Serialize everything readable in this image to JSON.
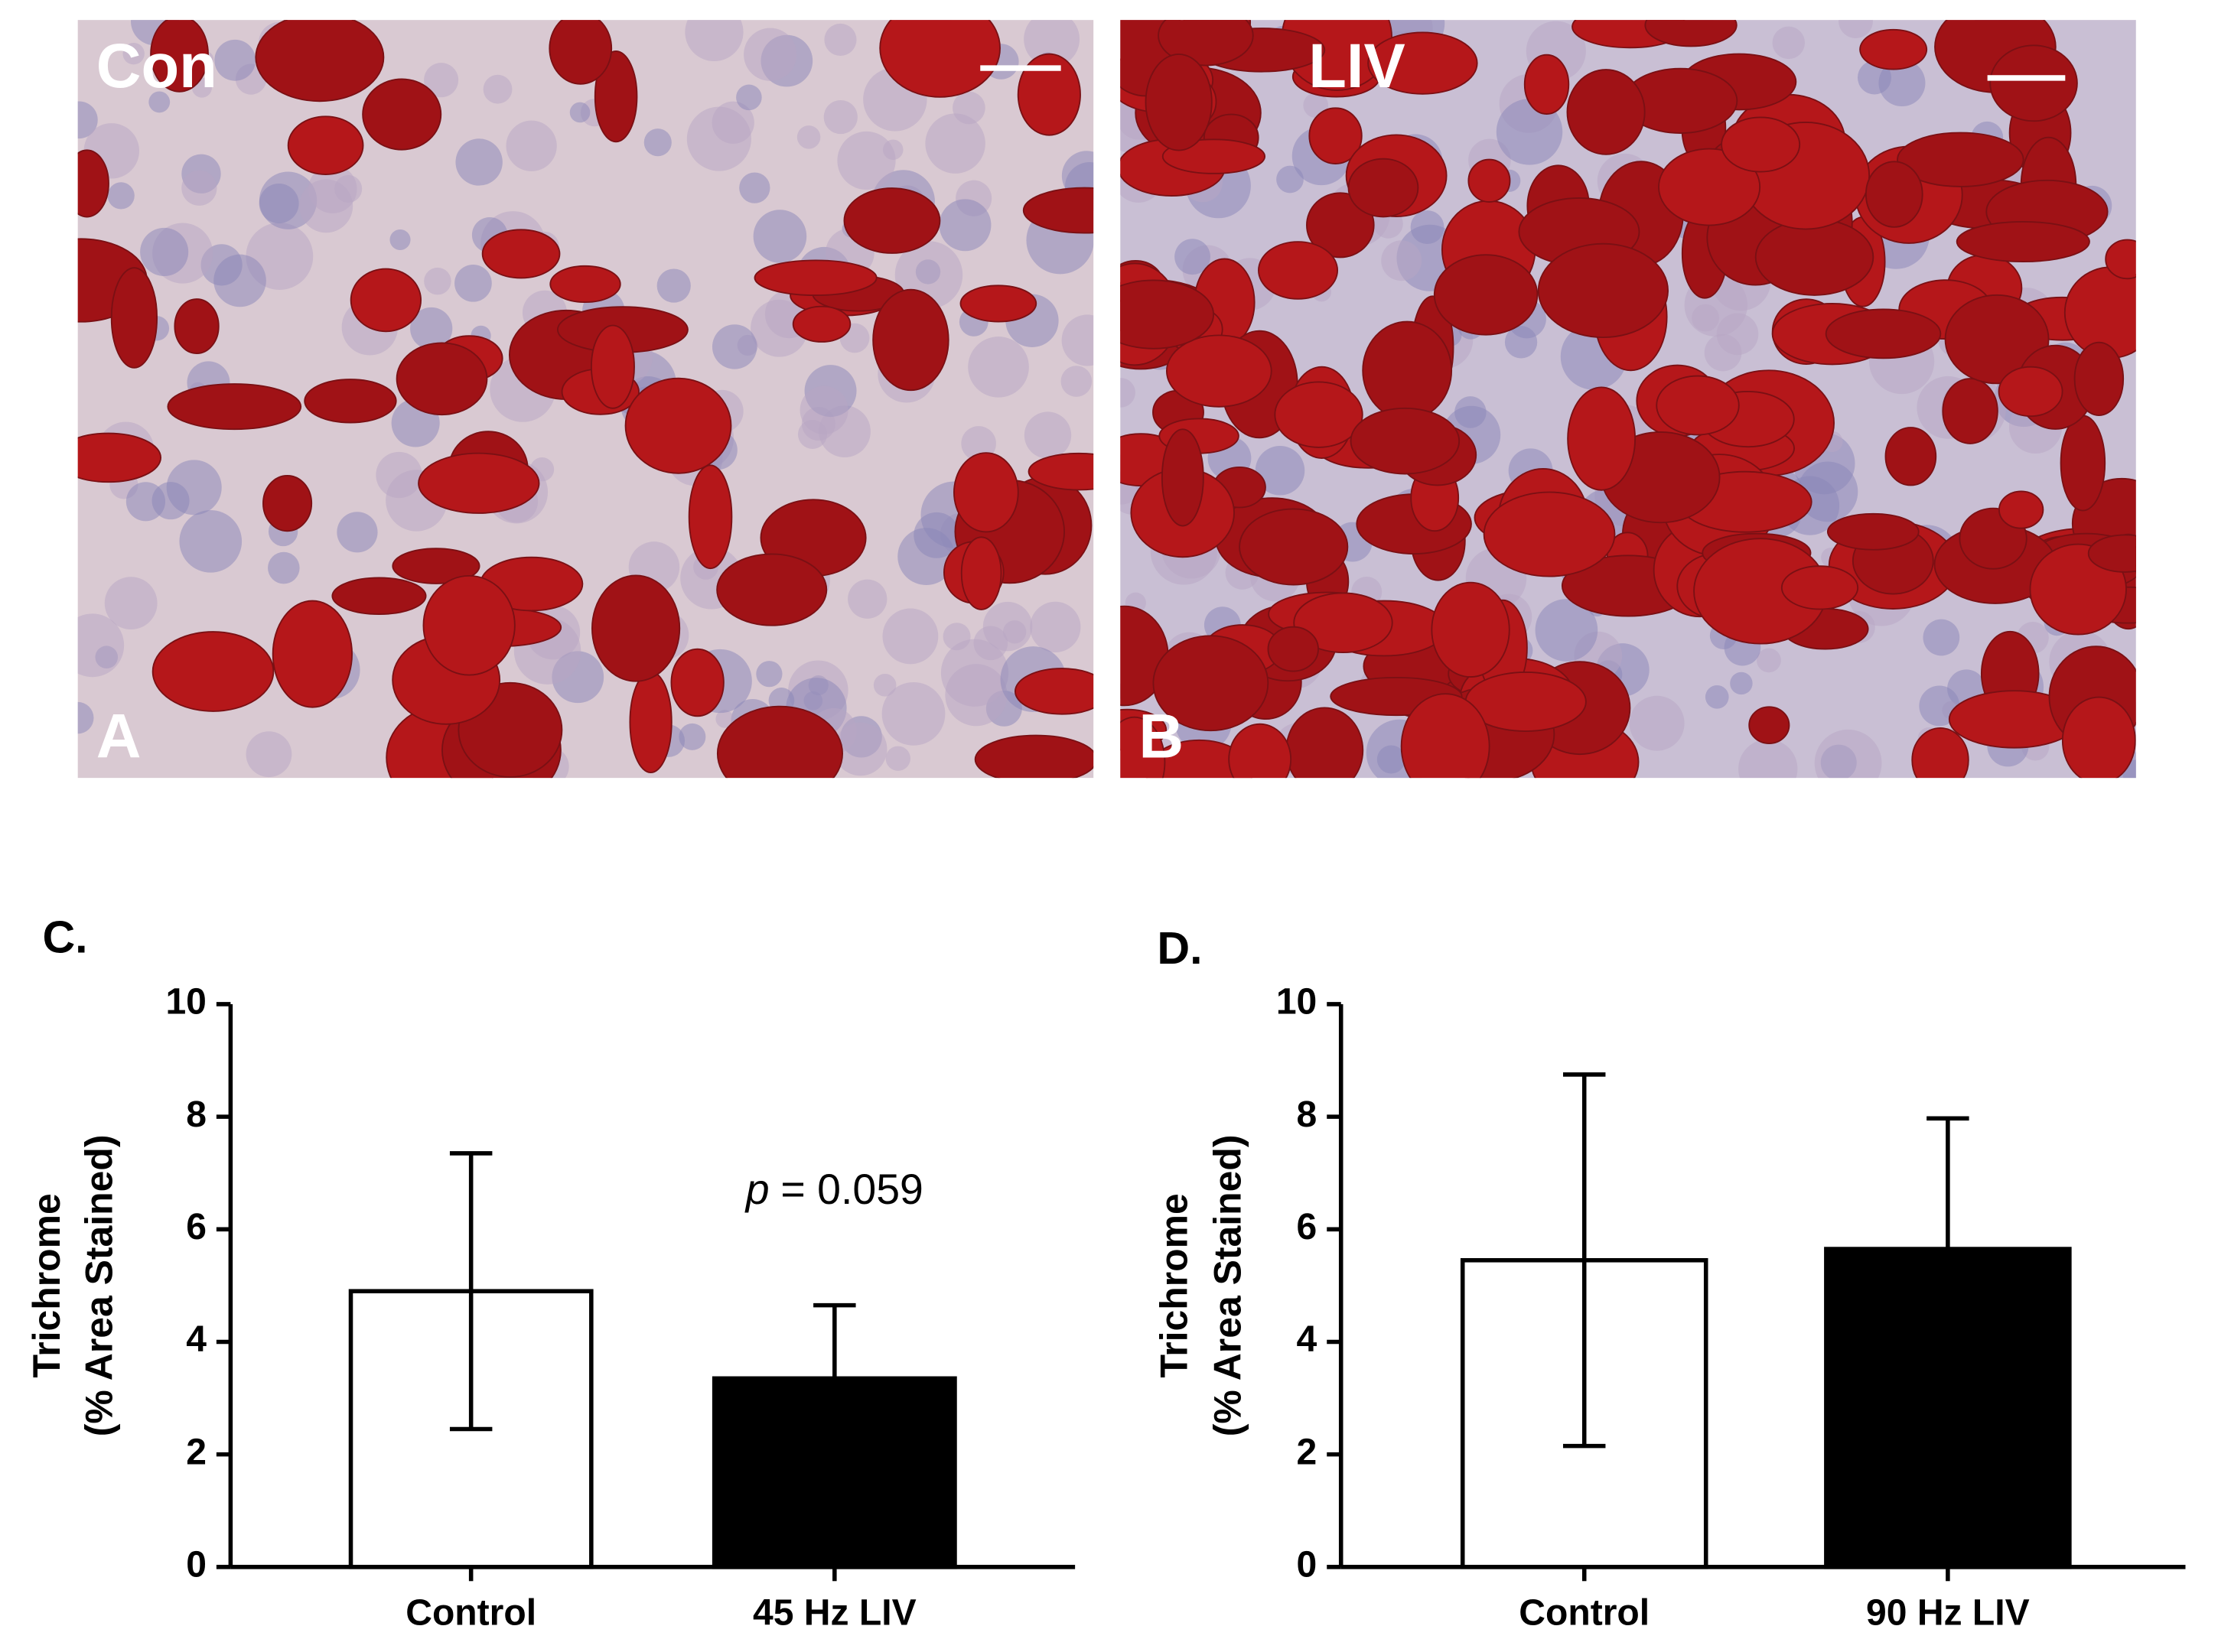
{
  "images": [
    {
      "label": "Con",
      "letter": "A"
    },
    {
      "label": "LIV",
      "letter": "B"
    }
  ],
  "chart_data": [
    {
      "type": "bar",
      "title": "C.",
      "categories": [
        "Control",
        "45 Hz LIV"
      ],
      "values": [
        4.9,
        3.35
      ],
      "errors": [
        2.45,
        1.3
      ],
      "colors": [
        "#ffffff",
        "#000000"
      ],
      "edge_color": "#000000",
      "ylim": [
        0,
        10
      ],
      "yticks": [
        0,
        2,
        4,
        6,
        8,
        10
      ],
      "ylabel": [
        "Trichrome",
        "(% Area Stained)"
      ],
      "annotation": {
        "symbol": "p",
        "text": "= 0.059"
      }
    },
    {
      "type": "bar",
      "title": "D.",
      "categories": [
        "Control",
        "90 Hz LIV"
      ],
      "values": [
        5.45,
        5.65
      ],
      "errors": [
        3.3,
        2.32
      ],
      "colors": [
        "#ffffff",
        "#000000"
      ],
      "edge_color": "#000000",
      "ylim": [
        0,
        10
      ],
      "yticks": [
        0,
        2,
        4,
        6,
        8,
        10
      ],
      "ylabel": [
        "Trichrome",
        "(% Area Stained)"
      ]
    }
  ]
}
